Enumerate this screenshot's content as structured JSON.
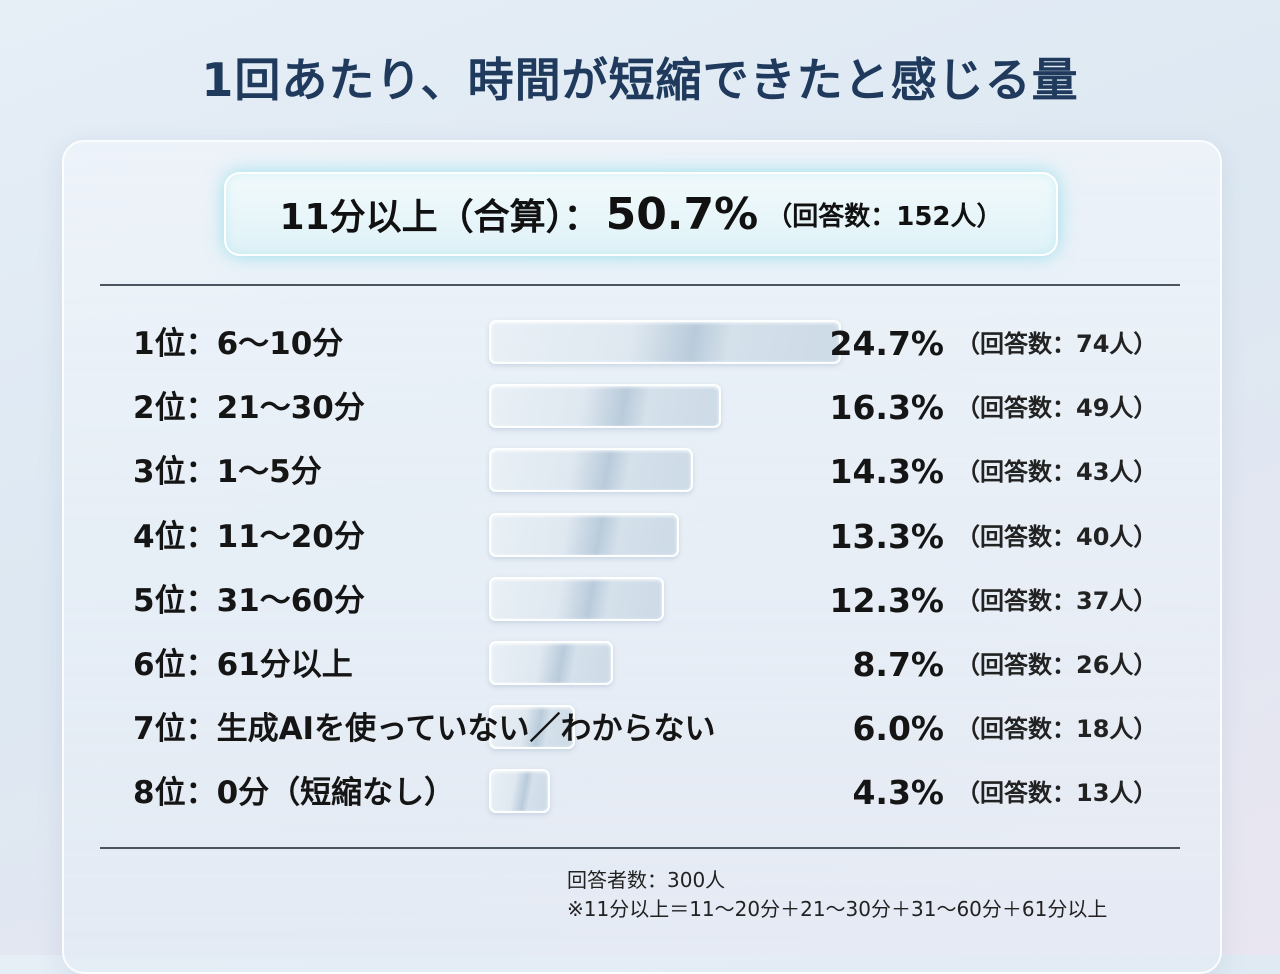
{
  "title": "1回あたり、時間が短縮できたと感じる量",
  "summary": {
    "label": "11分以上（合算）：",
    "value": "50.7%",
    "count": "（回答数：152人）"
  },
  "chart_data": {
    "type": "bar",
    "orientation": "horizontal",
    "title": "1回あたり、時間が短縮できたと感じる量",
    "unit": "%",
    "categories": [
      "1位：6〜10分",
      "2位：21〜30分",
      "3位：1〜5分",
      "4位：11〜20分",
      "5位：31〜60分",
      "6位：61分以上",
      "7位：生成AIを使っていない／わからない",
      "8位：0分（短縮なし）"
    ],
    "values": [
      24.7,
      16.3,
      14.3,
      13.3,
      12.3,
      8.7,
      6.0,
      4.3
    ],
    "value_labels": [
      "24.7%",
      "16.3%",
      "14.3%",
      "13.3%",
      "12.3%",
      "8.7%",
      "6.0%",
      "4.3%"
    ],
    "counts": [
      "（回答数：74人）",
      "（回答数：49人）",
      "（回答数：43人）",
      "（回答数：40人）",
      "（回答数：37人）",
      "（回答数：26人）",
      "（回答数：18人）",
      "（回答数：13人）"
    ],
    "xlim": [
      0,
      24.7
    ],
    "grid": false,
    "legend": "none"
  },
  "footnotes": {
    "respondents": "回答者数：300人",
    "note": "※11分以上＝11〜20分＋21〜30分＋31〜60分＋61分以上"
  }
}
